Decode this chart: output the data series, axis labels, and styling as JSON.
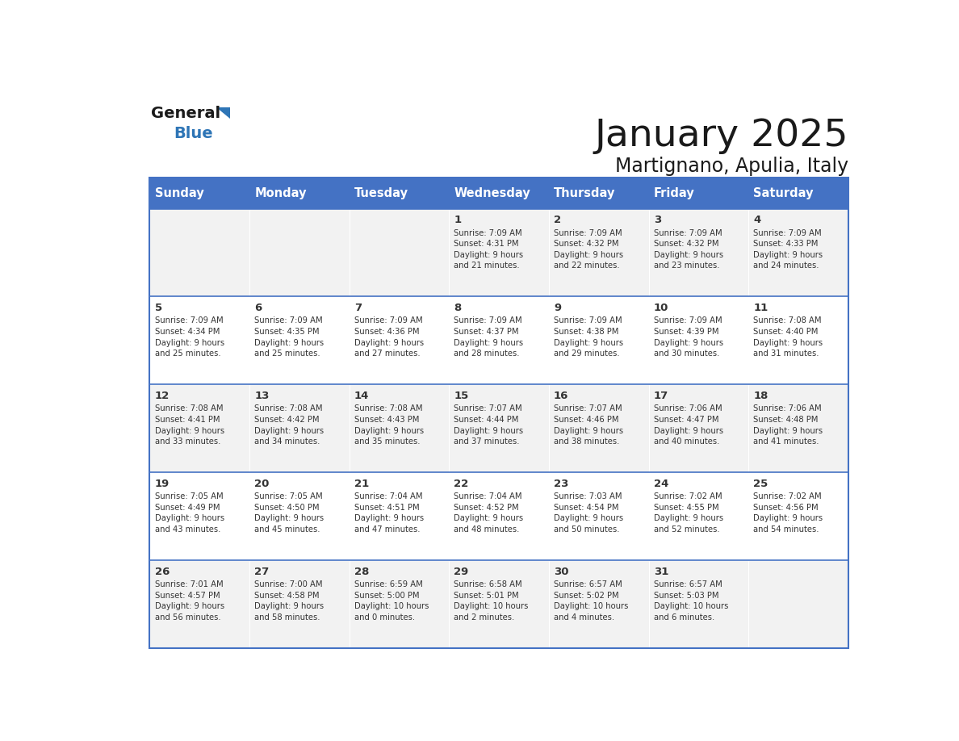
{
  "title": "January 2025",
  "subtitle": "Martignano, Apulia, Italy",
  "days_of_week": [
    "Sunday",
    "Monday",
    "Tuesday",
    "Wednesday",
    "Thursday",
    "Friday",
    "Saturday"
  ],
  "header_bg": "#4472C4",
  "header_text": "#FFFFFF",
  "cell_bg_light": "#F2F2F2",
  "cell_bg_white": "#FFFFFF",
  "border_color": "#4472C4",
  "text_color": "#333333",
  "logo_blue": "#2E75B6",
  "logo_dark": "#1A1A1A",
  "calendar": [
    [
      {
        "day": "",
        "info": ""
      },
      {
        "day": "",
        "info": ""
      },
      {
        "day": "",
        "info": ""
      },
      {
        "day": "1",
        "info": "Sunrise: 7:09 AM\nSunset: 4:31 PM\nDaylight: 9 hours\nand 21 minutes."
      },
      {
        "day": "2",
        "info": "Sunrise: 7:09 AM\nSunset: 4:32 PM\nDaylight: 9 hours\nand 22 minutes."
      },
      {
        "day": "3",
        "info": "Sunrise: 7:09 AM\nSunset: 4:32 PM\nDaylight: 9 hours\nand 23 minutes."
      },
      {
        "day": "4",
        "info": "Sunrise: 7:09 AM\nSunset: 4:33 PM\nDaylight: 9 hours\nand 24 minutes."
      }
    ],
    [
      {
        "day": "5",
        "info": "Sunrise: 7:09 AM\nSunset: 4:34 PM\nDaylight: 9 hours\nand 25 minutes."
      },
      {
        "day": "6",
        "info": "Sunrise: 7:09 AM\nSunset: 4:35 PM\nDaylight: 9 hours\nand 25 minutes."
      },
      {
        "day": "7",
        "info": "Sunrise: 7:09 AM\nSunset: 4:36 PM\nDaylight: 9 hours\nand 27 minutes."
      },
      {
        "day": "8",
        "info": "Sunrise: 7:09 AM\nSunset: 4:37 PM\nDaylight: 9 hours\nand 28 minutes."
      },
      {
        "day": "9",
        "info": "Sunrise: 7:09 AM\nSunset: 4:38 PM\nDaylight: 9 hours\nand 29 minutes."
      },
      {
        "day": "10",
        "info": "Sunrise: 7:09 AM\nSunset: 4:39 PM\nDaylight: 9 hours\nand 30 minutes."
      },
      {
        "day": "11",
        "info": "Sunrise: 7:08 AM\nSunset: 4:40 PM\nDaylight: 9 hours\nand 31 minutes."
      }
    ],
    [
      {
        "day": "12",
        "info": "Sunrise: 7:08 AM\nSunset: 4:41 PM\nDaylight: 9 hours\nand 33 minutes."
      },
      {
        "day": "13",
        "info": "Sunrise: 7:08 AM\nSunset: 4:42 PM\nDaylight: 9 hours\nand 34 minutes."
      },
      {
        "day": "14",
        "info": "Sunrise: 7:08 AM\nSunset: 4:43 PM\nDaylight: 9 hours\nand 35 minutes."
      },
      {
        "day": "15",
        "info": "Sunrise: 7:07 AM\nSunset: 4:44 PM\nDaylight: 9 hours\nand 37 minutes."
      },
      {
        "day": "16",
        "info": "Sunrise: 7:07 AM\nSunset: 4:46 PM\nDaylight: 9 hours\nand 38 minutes."
      },
      {
        "day": "17",
        "info": "Sunrise: 7:06 AM\nSunset: 4:47 PM\nDaylight: 9 hours\nand 40 minutes."
      },
      {
        "day": "18",
        "info": "Sunrise: 7:06 AM\nSunset: 4:48 PM\nDaylight: 9 hours\nand 41 minutes."
      }
    ],
    [
      {
        "day": "19",
        "info": "Sunrise: 7:05 AM\nSunset: 4:49 PM\nDaylight: 9 hours\nand 43 minutes."
      },
      {
        "day": "20",
        "info": "Sunrise: 7:05 AM\nSunset: 4:50 PM\nDaylight: 9 hours\nand 45 minutes."
      },
      {
        "day": "21",
        "info": "Sunrise: 7:04 AM\nSunset: 4:51 PM\nDaylight: 9 hours\nand 47 minutes."
      },
      {
        "day": "22",
        "info": "Sunrise: 7:04 AM\nSunset: 4:52 PM\nDaylight: 9 hours\nand 48 minutes."
      },
      {
        "day": "23",
        "info": "Sunrise: 7:03 AM\nSunset: 4:54 PM\nDaylight: 9 hours\nand 50 minutes."
      },
      {
        "day": "24",
        "info": "Sunrise: 7:02 AM\nSunset: 4:55 PM\nDaylight: 9 hours\nand 52 minutes."
      },
      {
        "day": "25",
        "info": "Sunrise: 7:02 AM\nSunset: 4:56 PM\nDaylight: 9 hours\nand 54 minutes."
      }
    ],
    [
      {
        "day": "26",
        "info": "Sunrise: 7:01 AM\nSunset: 4:57 PM\nDaylight: 9 hours\nand 56 minutes."
      },
      {
        "day": "27",
        "info": "Sunrise: 7:00 AM\nSunset: 4:58 PM\nDaylight: 9 hours\nand 58 minutes."
      },
      {
        "day": "28",
        "info": "Sunrise: 6:59 AM\nSunset: 5:00 PM\nDaylight: 10 hours\nand 0 minutes."
      },
      {
        "day": "29",
        "info": "Sunrise: 6:58 AM\nSunset: 5:01 PM\nDaylight: 10 hours\nand 2 minutes."
      },
      {
        "day": "30",
        "info": "Sunrise: 6:57 AM\nSunset: 5:02 PM\nDaylight: 10 hours\nand 4 minutes."
      },
      {
        "day": "31",
        "info": "Sunrise: 6:57 AM\nSunset: 5:03 PM\nDaylight: 10 hours\nand 6 minutes."
      },
      {
        "day": "",
        "info": ""
      }
    ]
  ]
}
